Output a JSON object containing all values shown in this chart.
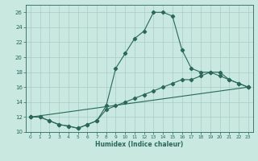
{
  "xlabel": "Humidex (Indice chaleur)",
  "bg_color": "#c8e8e0",
  "grid_color": "#a8ccc4",
  "line_color": "#2a6858",
  "xlim": [
    -0.5,
    23.5
  ],
  "ylim": [
    10,
    27
  ],
  "xticks": [
    0,
    1,
    2,
    3,
    4,
    5,
    6,
    7,
    8,
    9,
    10,
    11,
    12,
    13,
    14,
    15,
    16,
    17,
    18,
    19,
    20,
    21,
    22,
    23
  ],
  "yticks": [
    10,
    12,
    14,
    16,
    18,
    20,
    22,
    24,
    26
  ],
  "line1_x": [
    0,
    1,
    2,
    3,
    4,
    5,
    6,
    7,
    8,
    9,
    10,
    11,
    12,
    13,
    14,
    15,
    16,
    17,
    18,
    19,
    20,
    21,
    22,
    23
  ],
  "line1_y": [
    12,
    12,
    11.5,
    11,
    10.8,
    10.5,
    11,
    11.5,
    13.5,
    18.5,
    20.5,
    22.5,
    23.5,
    26,
    26,
    25.5,
    21,
    18.5,
    18,
    18,
    17.5,
    17,
    16.5,
    16
  ],
  "line2_x": [
    0,
    1,
    2,
    3,
    4,
    5,
    6,
    7,
    8,
    9,
    10,
    11,
    12,
    13,
    14,
    15,
    16,
    17,
    18,
    19,
    20,
    21,
    22,
    23
  ],
  "line2_y": [
    12,
    12,
    11.5,
    11,
    10.8,
    10.5,
    11,
    11.5,
    13,
    13.5,
    14,
    14.5,
    15,
    15.5,
    16,
    16.5,
    17,
    17,
    17.5,
    18,
    18,
    17,
    16.5,
    16
  ],
  "line3_x": [
    0,
    23
  ],
  "line3_y": [
    12,
    16
  ]
}
